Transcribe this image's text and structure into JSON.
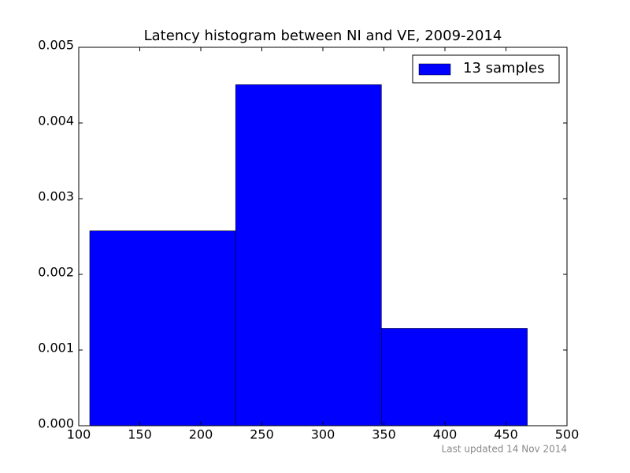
{
  "chart_data": {
    "type": "histogram",
    "title": "Latency histogram between NI and VE, 2009-2014",
    "bins": [
      109,
      228.5,
      348,
      467.5
    ],
    "series": [
      {
        "name": "13 samples",
        "color": "#0000ff",
        "values": [
          0.002575,
          0.004506,
          0.001287
        ]
      }
    ],
    "xlim": [
      100,
      500
    ],
    "xticks": [
      100,
      150,
      200,
      250,
      300,
      350,
      400,
      450,
      500
    ],
    "ylim": [
      0,
      0.005
    ],
    "yticks": [
      {
        "value": 0,
        "label": "0.000"
      },
      {
        "value": 0.001,
        "label": "0.001"
      },
      {
        "value": 0.002,
        "label": "0.002"
      },
      {
        "value": 0.003,
        "label": "0.003"
      },
      {
        "value": 0.004,
        "label": "0.004"
      },
      {
        "value": 0.005,
        "label": "0.005"
      }
    ],
    "legend": "upper right",
    "footnote": "Last updated 14 Nov 2014"
  }
}
